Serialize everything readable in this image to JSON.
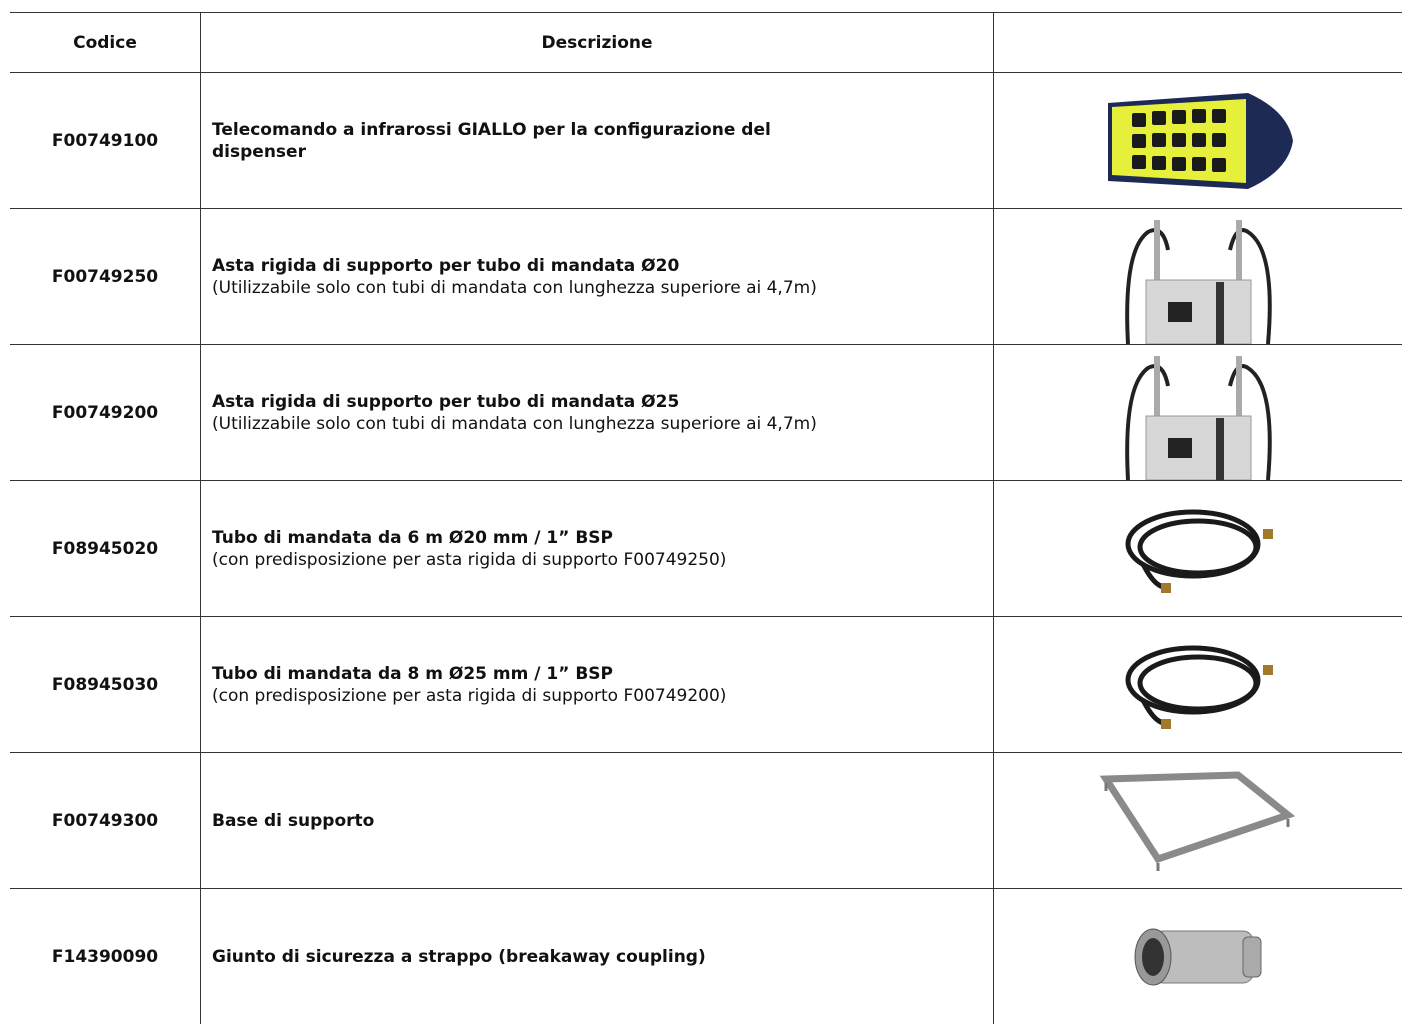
{
  "table": {
    "header": [
      "Codice",
      "Descrizione"
    ],
    "rows": [
      {
        "code": "F00749100",
        "title": "Telecomando a infrarossi GIALLO per la configurazione del dispenser"
      },
      {
        "code": "F00749250",
        "title": "Asta rigida di supporto per tubo di mandata Ø20",
        "note": "(Utilizzabile solo con tubi di mandata con lunghezza superiore ai 4,7m)"
      },
      {
        "code": "F00749200",
        "title": "Asta rigida di supporto per tubo di mandata Ø25",
        "note": "(Utilizzabile solo con tubi di mandata con lunghezza superiore ai 4,7m)"
      },
      {
        "code": "F08945020",
        "title": "Tubo di mandata da 6 m Ø20 mm / 1” BSP",
        "note": "(con predisposizione per asta rigida di supporto F00749250)"
      },
      {
        "code": "F08945030",
        "title": "Tubo di mandata da 8 m Ø25 mm / 1” BSP",
        "note": "(con predisposizione per asta rigida di supporto F00749200)"
      },
      {
        "code": "F00749300",
        "title": "Base di supporto"
      },
      {
        "code": "F14390090",
        "title": "Giunto di sicurezza a strappo (breakaway coupling)"
      }
    ]
  }
}
